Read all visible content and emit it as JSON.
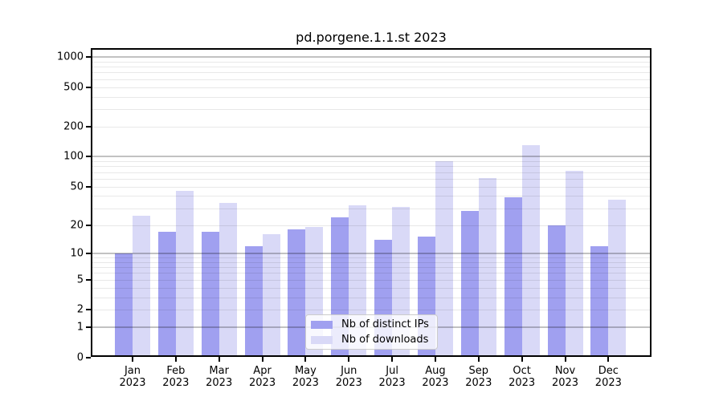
{
  "chart_data": {
    "type": "bar",
    "title": "pd.porgene.1.1.st 2023",
    "categories": [
      "Jan 2023",
      "Feb 2023",
      "Mar 2023",
      "Apr 2023",
      "May 2023",
      "Jun 2023",
      "Jul 2023",
      "Aug 2023",
      "Sep 2023",
      "Oct 2023",
      "Nov 2023",
      "Dec 2023"
    ],
    "series": [
      {
        "name": "Nb of distinct IPs",
        "color": "#a0a0f0",
        "values": [
          10,
          17,
          17,
          12,
          18,
          24,
          14,
          15,
          28,
          39,
          20,
          12
        ]
      },
      {
        "name": "Nb of downloads",
        "color": "#d9d9f7",
        "values": [
          25,
          45,
          34,
          16,
          19,
          32,
          31,
          91,
          61,
          132,
          72,
          37
        ]
      }
    ],
    "xlabel": "",
    "ylabel": "",
    "y_scale": "log10(value+1)",
    "y_ticks": [
      0,
      1,
      2,
      5,
      10,
      20,
      50,
      100,
      200,
      500,
      1000
    ],
    "y_major_gridlines": [
      1,
      10,
      100,
      1000
    ],
    "ylim": [
      0,
      1230
    ],
    "grid": "horizontal, major and minor, drawn over bars",
    "legend_position": "inside bottom-center",
    "colors": {
      "major_grid": "#bcbcbc",
      "minor_grid": "#ececec",
      "spine": "#000000",
      "text": "#000000",
      "background": "#ffffff"
    }
  }
}
